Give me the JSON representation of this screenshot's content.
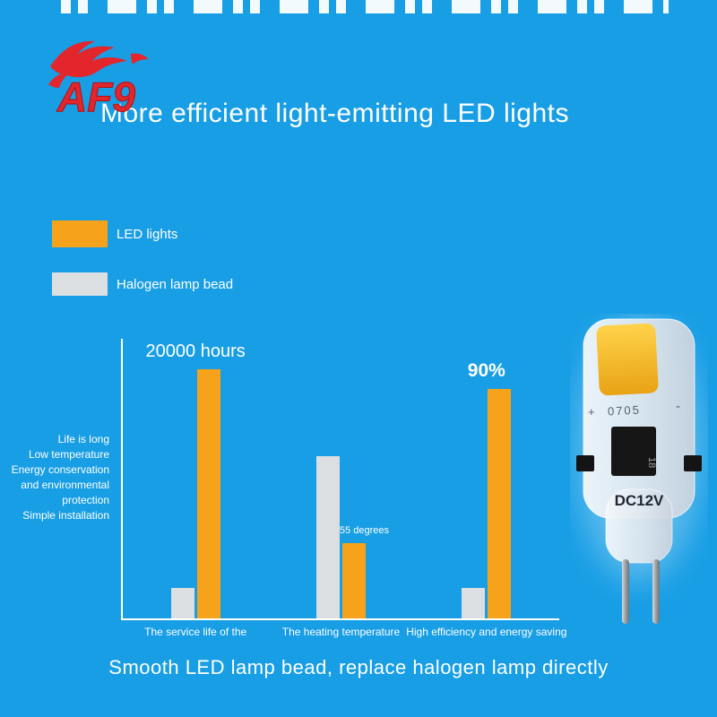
{
  "colors": {
    "background": "#189EE5",
    "orange": "#F6A21B",
    "gray": "#DCDFE2",
    "text": "#FFFFFF",
    "logo_red": "#E2262B"
  },
  "logo": {
    "text": "AF9"
  },
  "header": {
    "title": "More efficient light-emitting LED lights"
  },
  "legend": [
    {
      "label": "LED lights",
      "color": "#F6A21B"
    },
    {
      "label": "Halogen lamp bead",
      "color": "#DCDFE2"
    }
  ],
  "chart_data": {
    "type": "bar",
    "categories": [
      "The service life of the",
      "The heating temperature",
      "High efficiency and energy saving"
    ],
    "series": [
      {
        "name": "Halogen lamp bead",
        "color": "#DCDFE2",
        "values": [
          11,
          58,
          11
        ]
      },
      {
        "name": "LED lights",
        "color": "#F6A21B",
        "values": [
          89,
          27,
          82
        ]
      }
    ],
    "values_unit": "relative bar height, % of plot area",
    "annotations": [
      "20000 hours",
      "55 degrees",
      "90%"
    ],
    "ylabel_lines": [
      "Life is long",
      "Low temperature",
      "Energy conservation",
      "and environmental",
      "protection",
      "Simple installation"
    ],
    "title": "",
    "xlabel": "",
    "ylabel": "",
    "grid": false,
    "legend_position": "top-left"
  },
  "product": {
    "chip_plus": "+",
    "chip_code": "0705",
    "chip_minus": "-",
    "ic_text": "18",
    "voltage_label": "DC12V"
  },
  "footer": {
    "caption": "Smooth LED lamp bead, replace halogen lamp directly"
  }
}
